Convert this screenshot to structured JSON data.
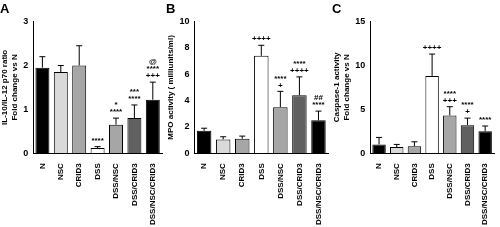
{
  "chart_data": [
    {
      "type": "bar",
      "title": "A",
      "y_label": [
        "IL-10/IL-12 p70 ratio",
        "Fold change vs N"
      ],
      "categories": [
        "N",
        "NSC",
        "CRID3",
        "DSS",
        "DSS/NSC",
        "DSS/CRID3",
        "DSS/NSC/CRID3"
      ],
      "values": [
        1.95,
        1.85,
        2.0,
        0.12,
        0.65,
        0.8,
        1.22
      ],
      "errors": [
        0.25,
        0.15,
        0.45,
        0.03,
        0.15,
        0.3,
        0.4
      ],
      "annotations": [
        null,
        null,
        null,
        [
          "****"
        ],
        [
          "*",
          "****"
        ],
        [
          "***",
          "****"
        ],
        [
          "@",
          "****",
          "+++"
        ]
      ],
      "colors": [
        "#000000",
        "#d9d9d9",
        "#a6a6a6",
        "#ffffff",
        "#a6a6a6",
        "#606060",
        "#000000"
      ],
      "ylim": [
        0,
        3
      ],
      "yticks": [
        0,
        1,
        2,
        3
      ],
      "grid": false
    },
    {
      "type": "bar",
      "title": "B",
      "y_label": [
        "MPO activity ( milliunits/ml)"
      ],
      "categories": [
        "N",
        "NSC",
        "CRID3",
        "DSS",
        "DSS/NSC",
        "DSS/CRID3",
        "DSS/NSC/CRID3"
      ],
      "values": [
        1.7,
        1.05,
        1.1,
        7.4,
        3.5,
        4.4,
        2.5
      ],
      "errors": [
        0.2,
        0.2,
        0.2,
        0.8,
        1.2,
        1.4,
        0.7
      ],
      "annotations": [
        null,
        null,
        null,
        [
          "++++"
        ],
        [
          "****",
          "+"
        ],
        [
          "****",
          "++++"
        ],
        [
          "##",
          "****"
        ]
      ],
      "colors": [
        "#000000",
        "#d9d9d9",
        "#a6a6a6",
        "#ffffff",
        "#a6a6a6",
        "#606060",
        "#000000"
      ],
      "ylim": [
        0,
        10
      ],
      "yticks": [
        0,
        2,
        4,
        6,
        8,
        10
      ],
      "grid": false
    },
    {
      "type": "bar",
      "title": "C",
      "y_label": [
        "Caspase-1 activity",
        "Fold change vs N"
      ],
      "categories": [
        "N",
        "NSC",
        "CRID3",
        "DSS",
        "DSS/NSC",
        "DSS/CRID3",
        "DSS/NSC/CRID3"
      ],
      "values": [
        1.0,
        0.7,
        0.8,
        8.8,
        4.3,
        3.2,
        2.5
      ],
      "errors": [
        0.8,
        0.3,
        0.5,
        2.5,
        1.0,
        0.8,
        0.6
      ],
      "annotations": [
        null,
        null,
        null,
        [
          "++++"
        ],
        [
          "****",
          "+++"
        ],
        [
          "****",
          "+"
        ],
        [
          "****"
        ]
      ],
      "colors": [
        "#000000",
        "#d9d9d9",
        "#a6a6a6",
        "#ffffff",
        "#a6a6a6",
        "#606060",
        "#000000"
      ],
      "ylim": [
        0,
        15
      ],
      "yticks": [
        0,
        5,
        10,
        15
      ],
      "grid": false
    }
  ]
}
